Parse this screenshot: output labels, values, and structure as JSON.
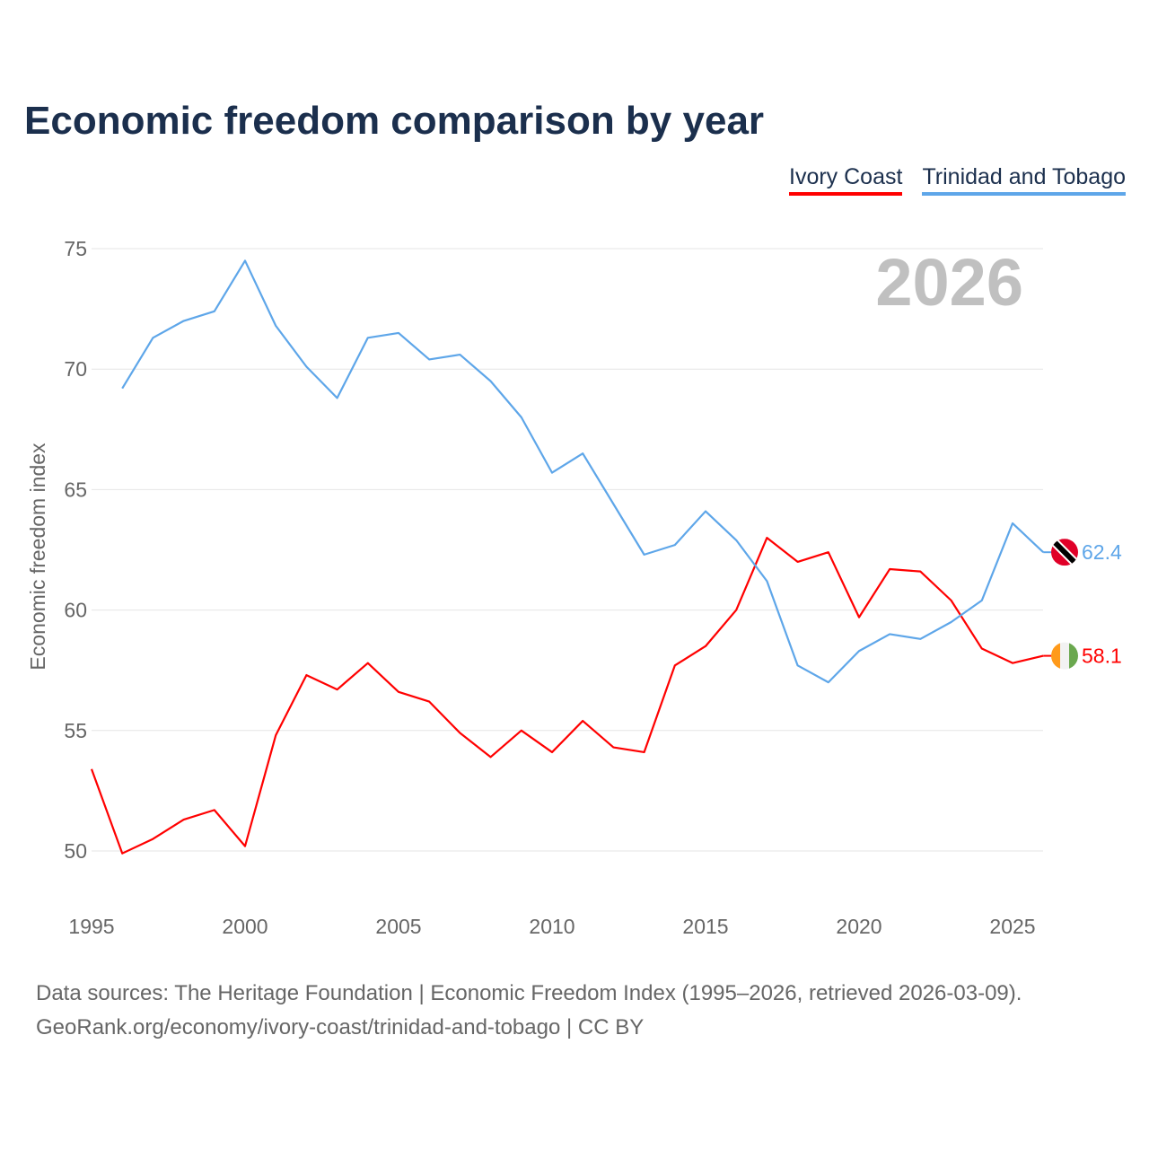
{
  "chart_data": {
    "type": "line",
    "title": "Economic freedom comparison by year",
    "ylabel": "Economic freedom index",
    "xlabel": "",
    "ylim": [
      50,
      75
    ],
    "xlim": [
      1995,
      2026
    ],
    "grid": true,
    "legend_position": "top-right",
    "year_watermark": "2026",
    "y_ticks": [
      "50",
      "55",
      "60",
      "65",
      "70",
      "75"
    ],
    "x_ticks": [
      "1995",
      "2000",
      "2005",
      "2010",
      "2015",
      "2020",
      "2025"
    ],
    "series": [
      {
        "name": "Ivory Coast",
        "color": "#ff0000",
        "end_label": "58.1",
        "flag": "ivory-coast-flag",
        "x": [
          1995,
          1996,
          1997,
          1998,
          1999,
          2000,
          2001,
          2002,
          2003,
          2004,
          2005,
          2006,
          2007,
          2008,
          2009,
          2010,
          2011,
          2012,
          2013,
          2014,
          2015,
          2016,
          2017,
          2018,
          2019,
          2020,
          2021,
          2022,
          2023,
          2024,
          2025,
          2026
        ],
        "values": [
          53.4,
          49.9,
          50.5,
          51.3,
          51.7,
          50.2,
          54.8,
          57.3,
          56.7,
          57.8,
          56.6,
          56.2,
          54.9,
          53.9,
          55.0,
          54.1,
          55.4,
          54.3,
          54.1,
          57.7,
          58.5,
          60.0,
          63.0,
          62.0,
          62.4,
          59.7,
          61.7,
          61.6,
          60.4,
          58.4,
          57.8,
          58.1
        ]
      },
      {
        "name": "Trinidad and Tobago",
        "color": "#5ea6e9",
        "end_label": "62.4",
        "flag": "trinidad-flag",
        "x": [
          1996,
          1997,
          1998,
          1999,
          2000,
          2001,
          2002,
          2003,
          2004,
          2005,
          2006,
          2007,
          2008,
          2009,
          2010,
          2011,
          2012,
          2013,
          2014,
          2015,
          2016,
          2017,
          2018,
          2019,
          2020,
          2021,
          2022,
          2023,
          2024,
          2025,
          2026
        ],
        "values": [
          69.2,
          71.3,
          72.0,
          72.4,
          74.5,
          71.8,
          70.1,
          68.8,
          71.3,
          71.5,
          70.4,
          70.6,
          69.5,
          68.0,
          65.7,
          66.5,
          64.4,
          62.3,
          62.7,
          64.1,
          62.9,
          61.2,
          57.7,
          57.0,
          58.3,
          59.0,
          58.8,
          59.5,
          60.4,
          63.6,
          62.4
        ]
      }
    ]
  },
  "source": {
    "line1": "Data sources: The Heritage Foundation | Economic Freedom Index (1995–2026, retrieved 2026-03-09).",
    "line2": "GeoRank.org/economy/ivory-coast/trinidad-and-tobago | CC BY"
  }
}
